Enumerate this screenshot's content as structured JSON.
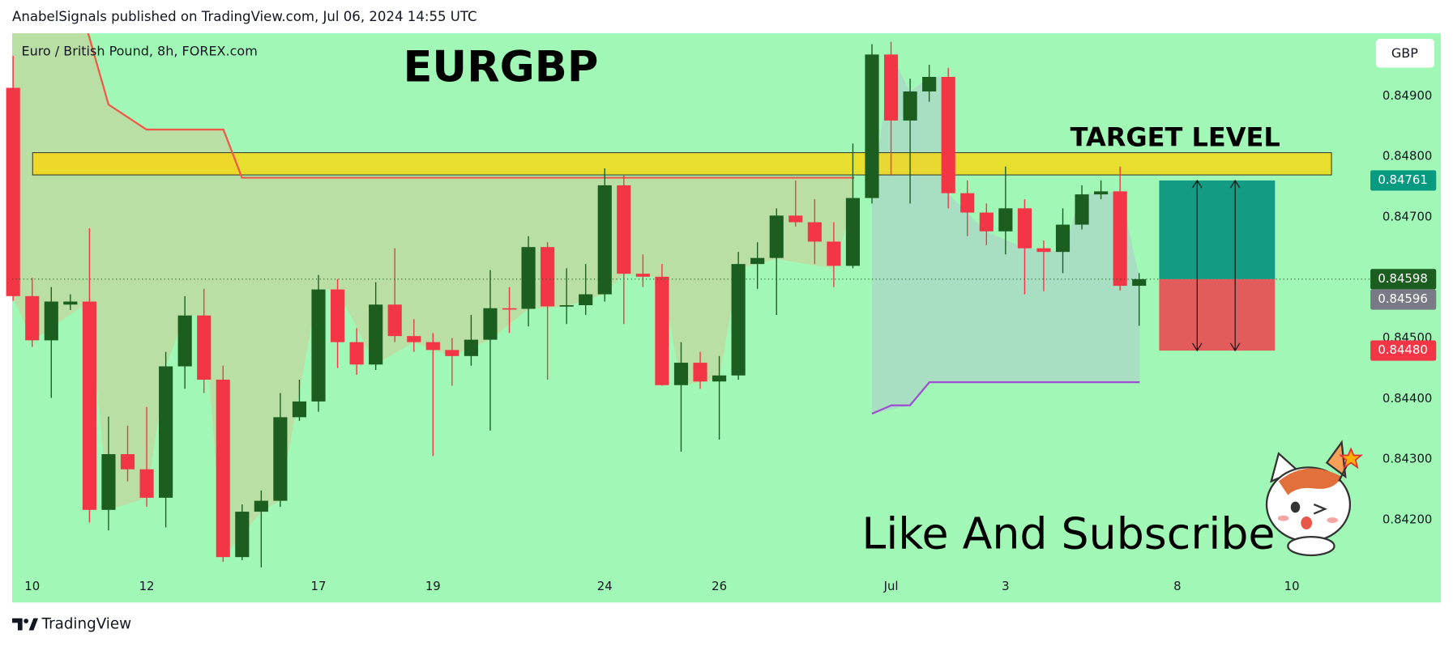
{
  "header": {
    "publisher_line": "AnabelSignals published on TradingView.com, Jul 06, 2024 14:55 UTC"
  },
  "chart_data": {
    "type": "candlestick",
    "title": "Euro / British Pound, 8h, FOREX.com",
    "symbol_title": "EURGBP",
    "currency": "GBP",
    "annotations": [
      "TARGET LEVEL",
      "Like And Subscribe"
    ],
    "up_color": "#1b5e20",
    "down_color": "#f23645",
    "categories": [
      null,
      "10",
      null,
      null,
      null,
      null,
      null,
      "12",
      null,
      null,
      null,
      null,
      null,
      null,
      null,
      null,
      "17",
      null,
      null,
      null,
      null,
      null,
      "19",
      null,
      null,
      null,
      null,
      null,
      null,
      null,
      null,
      "24",
      null,
      null,
      null,
      null,
      null,
      "26",
      null,
      null,
      null,
      null,
      null,
      null,
      null,
      null,
      "Jul",
      null,
      null,
      null,
      null,
      null,
      "3",
      null,
      null,
      null,
      null,
      null,
      null,
      null,
      null,
      "8",
      null,
      null,
      null,
      null,
      null,
      "10"
    ],
    "open": [
      0.84914,
      0.8457,
      0.84497,
      0.84556,
      0.84561,
      0.84217,
      0.84309,
      0.84284,
      0.84237,
      0.84454,
      0.84538,
      0.84432,
      0.84139,
      0.84214,
      0.84232,
      0.8437,
      0.84396,
      0.84581,
      0.84494,
      0.84457,
      0.84556,
      0.84504,
      0.84494,
      0.84481,
      0.84471,
      0.84498,
      0.8455,
      0.84549,
      0.84651,
      0.84553,
      0.84555,
      0.84573,
      0.84753,
      0.84607,
      0.84602,
      0.84423,
      0.8446,
      0.84429,
      0.84439,
      0.84623,
      0.84633,
      0.84703,
      0.84692,
      0.8466,
      0.8462,
      0.84732,
      0.84969,
      0.8486,
      0.84908,
      0.84932,
      0.8474,
      0.84708,
      0.84677,
      0.84715,
      0.84649,
      0.84643,
      0.84688,
      0.84738,
      0.84743,
      0.84587,
      null,
      null,
      null,
      null,
      null,
      null,
      null,
      null
    ],
    "high": [
      0.84967,
      0.846,
      0.84585,
      0.84573,
      0.84682,
      0.84371,
      0.84356,
      0.84387,
      0.84478,
      0.8457,
      0.84582,
      0.84455,
      0.84226,
      0.84249,
      0.8441,
      0.84432,
      0.84605,
      0.84598,
      0.84517,
      0.84593,
      0.84649,
      0.84532,
      0.84509,
      0.84501,
      0.84539,
      0.84613,
      0.84585,
      0.84669,
      0.84659,
      0.84616,
      0.84623,
      0.84781,
      0.84769,
      0.84639,
      0.84623,
      0.84494,
      0.84478,
      0.84471,
      0.84643,
      0.84659,
      0.84715,
      0.84761,
      0.8473,
      0.84692,
      0.84822,
      0.84986,
      0.8499,
      0.84929,
      0.84952,
      0.84947,
      0.84761,
      0.84723,
      0.84784,
      0.8473,
      0.84662,
      0.84715,
      0.84753,
      0.84761,
      0.84784,
      0.84608,
      null,
      null,
      null,
      null,
      null,
      null,
      null,
      null
    ],
    "low": [
      0.84562,
      0.84486,
      0.84402,
      0.84547,
      0.84196,
      0.84183,
      0.84264,
      0.84222,
      0.84188,
      0.84417,
      0.8441,
      0.84131,
      0.84134,
      0.84122,
      0.84222,
      0.84364,
      0.84379,
      0.84451,
      0.8444,
      0.84448,
      0.84494,
      0.84478,
      0.84306,
      0.84422,
      0.84455,
      0.84348,
      0.84509,
      0.8452,
      0.84432,
      0.84524,
      0.84539,
      0.84561,
      0.84524,
      0.84585,
      0.84422,
      0.84313,
      0.84417,
      0.84333,
      0.84432,
      0.84582,
      0.84539,
      0.84685,
      0.84623,
      0.84585,
      0.84616,
      0.84723,
      0.84769,
      0.84723,
      0.84891,
      0.84715,
      0.84669,
      0.84654,
      0.84639,
      0.84573,
      0.84578,
      0.84608,
      0.8468,
      0.8473,
      0.84579,
      0.84521,
      null,
      null,
      null,
      null,
      null,
      null,
      null,
      null
    ],
    "close": [
      0.8457,
      0.84497,
      0.84561,
      0.84561,
      0.84217,
      0.84309,
      0.84284,
      0.84237,
      0.84454,
      0.84538,
      0.84432,
      0.84139,
      0.84214,
      0.84232,
      0.8437,
      0.84396,
      0.84581,
      0.84494,
      0.84457,
      0.84556,
      0.84504,
      0.84494,
      0.84481,
      0.84471,
      0.84498,
      0.8455,
      0.84549,
      0.84651,
      0.84553,
      0.84555,
      0.84573,
      0.84753,
      0.84607,
      0.84602,
      0.84423,
      0.8446,
      0.84429,
      0.84439,
      0.84623,
      0.84633,
      0.84703,
      0.84692,
      0.8466,
      0.8462,
      0.84732,
      0.84969,
      0.8486,
      0.84908,
      0.84932,
      0.8474,
      0.84708,
      0.84677,
      0.84715,
      0.84649,
      0.84643,
      0.84688,
      0.84738,
      0.84743,
      0.84587,
      0.84598,
      null,
      null,
      null,
      null,
      null,
      null,
      null,
      null
    ],
    "ylim": [
      0.84064,
      0.85004
    ],
    "yticks": [
      {
        "value": 0.849,
        "label": "0.84900"
      },
      {
        "value": 0.848,
        "label": "0.84800"
      },
      {
        "value": 0.847,
        "label": "0.84700"
      },
      {
        "value": 0.845,
        "label": "0.84500"
      },
      {
        "value": 0.844,
        "label": "0.84400"
      },
      {
        "value": 0.843,
        "label": "0.84300"
      },
      {
        "value": 0.842,
        "label": "0.84200"
      }
    ],
    "price_labels": {
      "target": {
        "value": 0.84761,
        "label": "0.84761",
        "color": "#089981"
      },
      "last": {
        "value": 0.84598,
        "label": "0.84598",
        "color": "#1b5e20"
      },
      "other": {
        "value": 0.84596,
        "label": "0.84596",
        "color": "#787b86"
      },
      "stop": {
        "value": 0.8448,
        "label": "0.84480",
        "color": "#f23645"
      }
    }
  },
  "footer": {
    "brand": "TradingView"
  }
}
